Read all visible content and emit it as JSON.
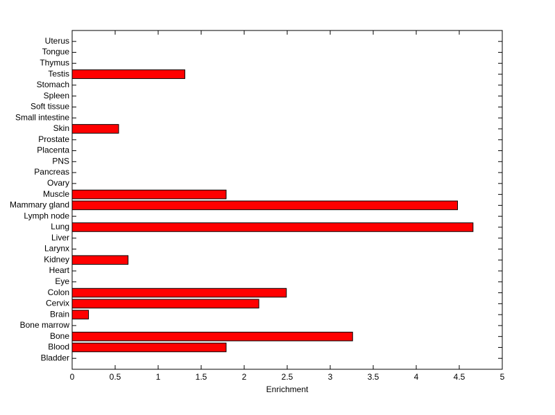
{
  "chart_data": {
    "type": "barh",
    "x_label": "Enrichment",
    "categories": [
      "Bladder",
      "Blood",
      "Bone",
      "Bone marrow",
      "Brain",
      "Cervix",
      "Colon",
      "Eye",
      "Heart",
      "Kidney",
      "Larynx",
      "Liver",
      "Lung",
      "Lymph node",
      "Mammary gland",
      "Muscle",
      "Ovary",
      "Pancreas",
      "PNS",
      "Placenta",
      "Prostate",
      "Skin",
      "Small intestine",
      "Soft tissue",
      "Spleen",
      "Stomach",
      "Testis",
      "Thymus",
      "Tongue",
      "Uterus"
    ],
    "values": [
      0,
      1.79,
      3.26,
      0,
      0.19,
      2.17,
      2.49,
      0,
      0,
      0.65,
      0,
      0,
      4.66,
      0,
      4.48,
      1.79,
      0,
      0,
      0,
      0,
      0,
      0.54,
      0,
      0,
      0,
      0,
      1.31,
      0,
      0,
      0
    ],
    "color": "#ff0000",
    "xlim": [
      0,
      5
    ],
    "xticks": [
      0,
      0.5,
      1,
      1.5,
      2,
      2.5,
      3,
      3.5,
      4,
      4.5,
      5
    ]
  }
}
